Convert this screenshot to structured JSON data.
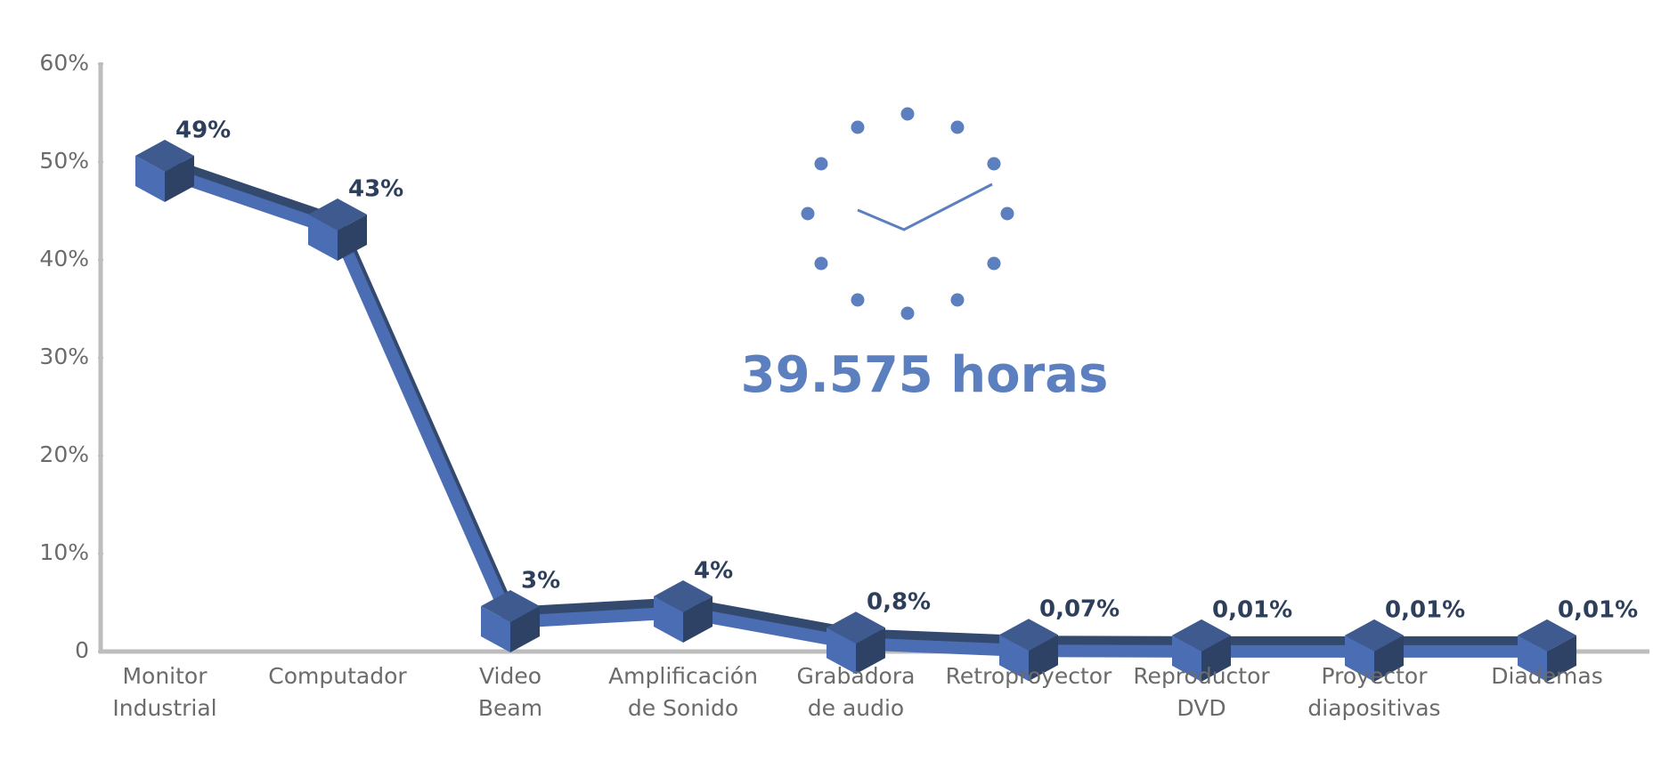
{
  "chart_data": {
    "type": "line",
    "categories": [
      "Monitor\nIndustrial",
      "Computador",
      "Video\nBeam",
      "Amplificación\nde Sonido",
      "Grabadora\nde audio",
      "Retroproyector",
      "Reproductor\nDVD",
      "Proyector\ndiapositivas",
      "Diademas"
    ],
    "series": [
      {
        "color": "#4a6db3",
        "values": [
          49,
          43,
          3,
          4,
          0.8,
          0.07,
          0.01,
          0.01,
          0.01
        ],
        "value_labels": [
          "49%",
          "43%",
          "3%",
          "4%",
          "0,8%",
          "0,07%",
          "0,01%",
          "0,01%",
          "0,01%"
        ]
      }
    ],
    "ylim": [
      0,
      60
    ],
    "yticks": [
      0,
      {
        "value": 10,
        "label": "10%"
      },
      {
        "value": 20,
        "label": "20%"
      },
      {
        "value": 30,
        "label": "30%"
      },
      {
        "value": 40,
        "label": "40%"
      },
      {
        "value": 50,
        "label": "50%"
      },
      {
        "value": 60,
        "label": "60%"
      }
    ],
    "annotation": "39.575 horas"
  }
}
